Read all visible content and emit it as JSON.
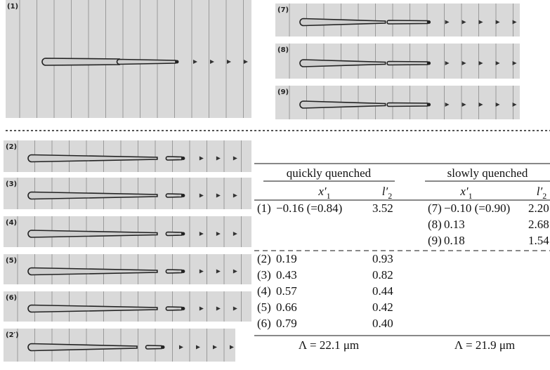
{
  "panels": [
    "(1)",
    "(7)",
    "(8)",
    "(9)",
    "(2)",
    "(3)",
    "(4)",
    "(5)",
    "(6)",
    "(2′)"
  ],
  "table": {
    "groups": [
      "quickly quenched",
      "slowly quenched"
    ],
    "columns": [
      {
        "symbol": "x′",
        "sub": "1"
      },
      {
        "symbol": "l′",
        "sub": "2"
      }
    ],
    "quick_rows": [
      [
        "(1)",
        "−0.16 (=0.84)",
        "3.52"
      ],
      [
        "(2)",
        "0.19",
        "0.93"
      ],
      [
        "(3)",
        "0.43",
        "0.82"
      ],
      [
        "(4)",
        "0.57",
        "0.44"
      ],
      [
        "(5)",
        "0.66",
        "0.42"
      ],
      [
        "(6)",
        "0.79",
        "0.40"
      ]
    ],
    "slow_rows": [
      [
        "(7)",
        "−0.10 (=0.90)",
        "2.20"
      ],
      [
        "(8)",
        "0.13",
        "2.68"
      ],
      [
        "(9)",
        "0.18",
        "1.54"
      ]
    ],
    "footer": [
      "Λ = 22.1 μm",
      "Λ = 21.9 μm"
    ]
  }
}
